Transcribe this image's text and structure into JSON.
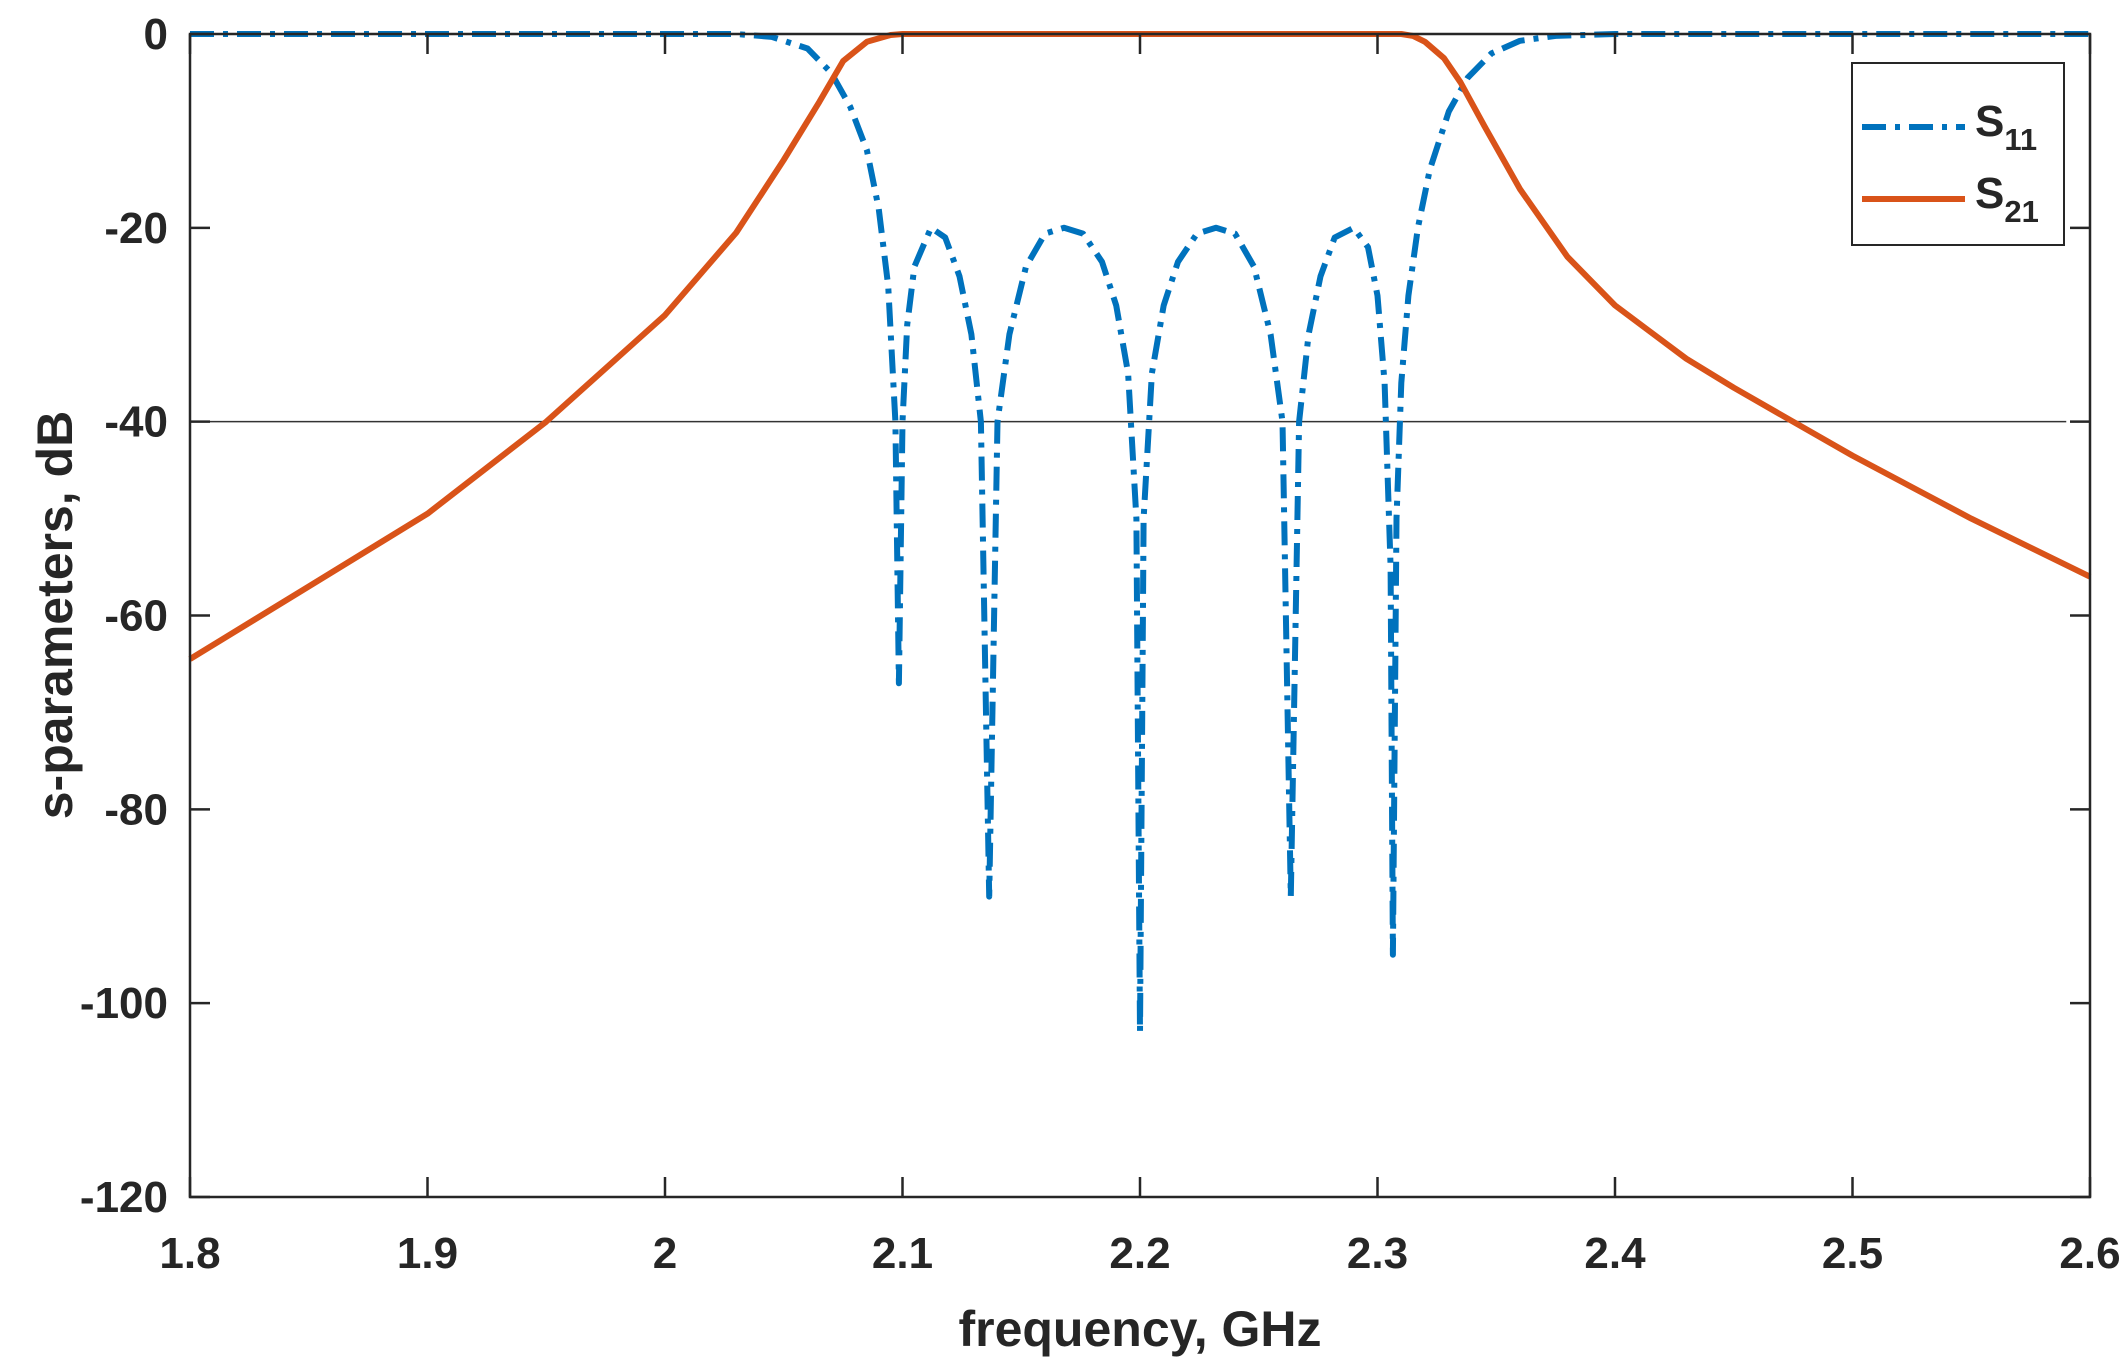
{
  "chart_data": {
    "type": "line",
    "title": "",
    "xlabel": "frequency, GHz",
    "ylabel": "s-parameters, dB",
    "xlim": [
      1.8,
      2.6
    ],
    "ylim": [
      -120,
      0
    ],
    "xticks": [
      "1.8",
      "1.9",
      "2",
      "2.1",
      "2.2",
      "2.3",
      "2.4",
      "2.5",
      "2.6"
    ],
    "yticks": [
      "0",
      "-20",
      "-40",
      "-60",
      "-80",
      "-100",
      "-120"
    ],
    "reference_line": {
      "y": -40,
      "x_range": [
        1.8,
        2.59
      ],
      "color": "#333333"
    },
    "legend": {
      "position": "top-right"
    },
    "series": [
      {
        "name": "S11",
        "name_main": "S",
        "name_sub": "11",
        "color": "#0072BD",
        "style": "dash-dot",
        "points": [
          [
            1.8,
            0
          ],
          [
            2.03,
            0
          ],
          [
            2.045,
            -0.3
          ],
          [
            2.06,
            -1.5
          ],
          [
            2.07,
            -4
          ],
          [
            2.078,
            -7.5
          ],
          [
            2.085,
            -12
          ],
          [
            2.09,
            -18
          ],
          [
            2.094,
            -26
          ],
          [
            2.097,
            -40
          ],
          [
            2.0985,
            -67
          ],
          [
            2.1,
            -40
          ],
          [
            2.102,
            -30
          ],
          [
            2.105,
            -24
          ],
          [
            2.112,
            -20
          ],
          [
            2.118,
            -21
          ],
          [
            2.124,
            -25
          ],
          [
            2.129,
            -31
          ],
          [
            2.133,
            -40
          ],
          [
            2.1365,
            -89
          ],
          [
            2.14,
            -40
          ],
          [
            2.145,
            -31
          ],
          [
            2.152,
            -24
          ],
          [
            2.16,
            -20.6
          ],
          [
            2.168,
            -20
          ],
          [
            2.176,
            -20.6
          ],
          [
            2.184,
            -23.5
          ],
          [
            2.19,
            -28
          ],
          [
            2.195,
            -35
          ],
          [
            2.1985,
            -50
          ],
          [
            2.2,
            -103
          ],
          [
            2.2015,
            -50
          ],
          [
            2.205,
            -35
          ],
          [
            2.21,
            -28
          ],
          [
            2.216,
            -23.5
          ],
          [
            2.224,
            -20.6
          ],
          [
            2.232,
            -20
          ],
          [
            2.24,
            -20.6
          ],
          [
            2.248,
            -24
          ],
          [
            2.255,
            -31
          ],
          [
            2.26,
            -40
          ],
          [
            2.2635,
            -89
          ],
          [
            2.267,
            -40
          ],
          [
            2.271,
            -31
          ],
          [
            2.276,
            -25
          ],
          [
            2.282,
            -21
          ],
          [
            2.29,
            -20
          ],
          [
            2.296,
            -22
          ],
          [
            2.3,
            -27
          ],
          [
            2.303,
            -36
          ],
          [
            2.3055,
            -55
          ],
          [
            2.3065,
            -95
          ],
          [
            2.308,
            -50
          ],
          [
            2.31,
            -36
          ],
          [
            2.313,
            -27
          ],
          [
            2.317,
            -20
          ],
          [
            2.322,
            -14
          ],
          [
            2.33,
            -8
          ],
          [
            2.338,
            -4.5
          ],
          [
            2.348,
            -2
          ],
          [
            2.36,
            -0.7
          ],
          [
            2.375,
            -0.2
          ],
          [
            2.4,
            0
          ],
          [
            2.6,
            0
          ]
        ]
      },
      {
        "name": "S21",
        "name_main": "S",
        "name_sub": "21",
        "color": "#D95319",
        "style": "solid",
        "points": [
          [
            1.8,
            -64.5
          ],
          [
            1.85,
            -57
          ],
          [
            1.9,
            -49.5
          ],
          [
            1.95,
            -40
          ],
          [
            2.0,
            -29
          ],
          [
            2.03,
            -20.5
          ],
          [
            2.05,
            -13
          ],
          [
            2.065,
            -7
          ],
          [
            2.075,
            -2.8
          ],
          [
            2.085,
            -0.8
          ],
          [
            2.095,
            -0.1
          ],
          [
            2.1,
            0
          ],
          [
            2.31,
            0
          ],
          [
            2.315,
            -0.2
          ],
          [
            2.32,
            -0.8
          ],
          [
            2.328,
            -2.5
          ],
          [
            2.335,
            -5
          ],
          [
            2.345,
            -9.5
          ],
          [
            2.36,
            -16
          ],
          [
            2.38,
            -23
          ],
          [
            2.4,
            -28
          ],
          [
            2.43,
            -33.5
          ],
          [
            2.45,
            -36.5
          ],
          [
            2.475,
            -40
          ],
          [
            2.5,
            -43.5
          ],
          [
            2.55,
            -50
          ],
          [
            2.6,
            -56
          ]
        ]
      }
    ]
  }
}
